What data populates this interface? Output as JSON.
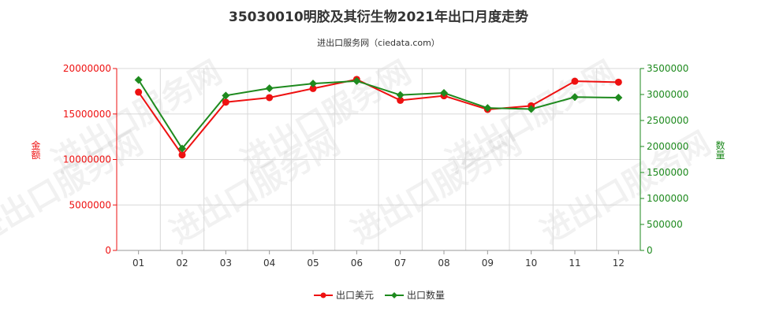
{
  "title": "35030010明胶及其衍生物2021年出口月度走势",
  "subtitle": "进出口服务网（ciedata.com）",
  "watermark": "进出口服务网",
  "chart_data": {
    "type": "line",
    "categories": [
      "01",
      "02",
      "03",
      "04",
      "05",
      "06",
      "07",
      "08",
      "09",
      "10",
      "11",
      "12"
    ],
    "series": [
      {
        "name": "出口美元",
        "axis": "left",
        "color": "#ee1111",
        "marker": "circle",
        "values": [
          17400000,
          10500000,
          16300000,
          16800000,
          17800000,
          18800000,
          16500000,
          17000000,
          15500000,
          15900000,
          18600000,
          18500000
        ]
      },
      {
        "name": "出口数量",
        "axis": "right",
        "color": "#1e8a1e",
        "marker": "diamond",
        "values": [
          3280000,
          1960000,
          2980000,
          3120000,
          3210000,
          3260000,
          2990000,
          3030000,
          2740000,
          2720000,
          2950000,
          2940000
        ]
      }
    ],
    "y_left": {
      "label": "金额",
      "ylim": [
        0,
        20000000
      ],
      "ticks": [
        0,
        5000000,
        10000000,
        15000000,
        20000000
      ],
      "tick_labels": [
        "0",
        "5000000",
        "10000000",
        "15000000",
        "20000000"
      ],
      "color": "#ee1111"
    },
    "y_right": {
      "label": "数量",
      "ylim": [
        0,
        3500000
      ],
      "ticks": [
        0,
        500000,
        1000000,
        1500000,
        2000000,
        2500000,
        3000000,
        3500000
      ],
      "tick_labels": [
        "0",
        "500000",
        "1000000",
        "1500000",
        "2000000",
        "2500000",
        "3000000",
        "3500000"
      ],
      "color": "#1e8a1e"
    },
    "grid": true,
    "legend_position": "bottom-center"
  }
}
